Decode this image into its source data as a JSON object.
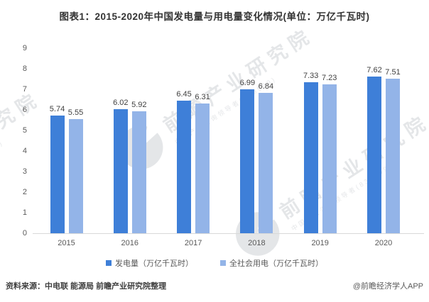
{
  "chart_data": {
    "type": "bar",
    "title": "图表1：2015-2020年中国发电量与用电量变化情况(单位：万亿千瓦时)",
    "categories": [
      "2015",
      "2016",
      "2017",
      "2018",
      "2019",
      "2020"
    ],
    "series": [
      {
        "name": "发电量（万亿千瓦时）",
        "color": "#3E7FD8",
        "values": [
          5.74,
          6.02,
          6.45,
          6.99,
          7.33,
          7.62
        ]
      },
      {
        "name": "全社会用电（万亿千瓦时）",
        "color": "#93B4E8",
        "values": [
          5.55,
          5.92,
          6.31,
          6.84,
          7.23,
          7.51
        ]
      }
    ],
    "xlabel": "",
    "ylabel": "",
    "ylim": [
      0,
      9
    ],
    "ytick_step": 1,
    "grid": false,
    "legend_position": "bottom",
    "value_labels": true
  },
  "footer": {
    "source": "资料来源：中电联 能源局 前瞻产业研究院整理",
    "credit": "@前瞻经济学人APP"
  },
  "watermark": {
    "brand": "前瞻产业研究院",
    "tagline": "中国产业咨询领导者(839599)"
  },
  "colors": {
    "series1": "#3E7FD8",
    "series2": "#93B4E8",
    "axis_line": "#D9D9D9",
    "title_text": "#333333",
    "muted_text": "#595959"
  }
}
